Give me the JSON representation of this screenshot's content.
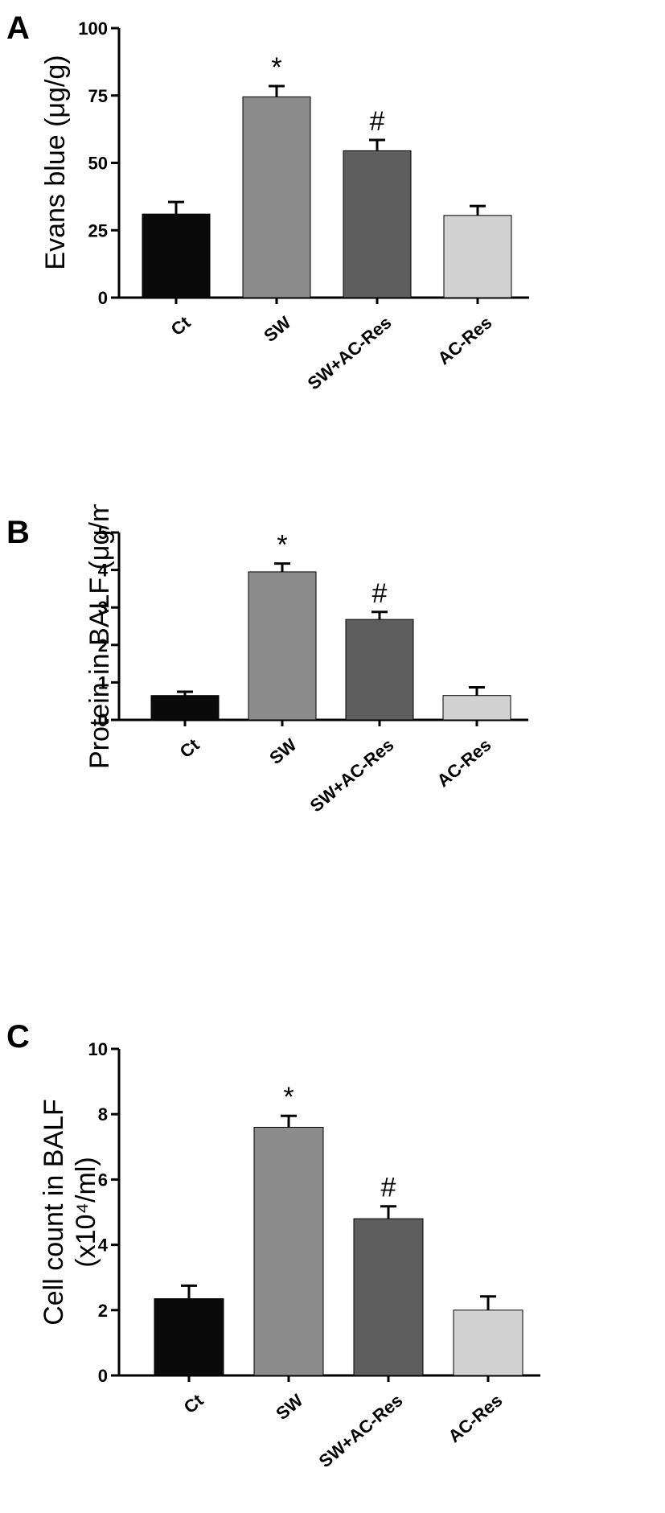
{
  "chart_data": [
    {
      "type": "bar",
      "panel": "A",
      "ylabel_lines": [
        "Evans blue (μg/g)"
      ],
      "categories": [
        "Ct",
        "SW",
        "SW+AC-Res",
        "AC-Res"
      ],
      "values": [
        31,
        74.5,
        54.5,
        30.5
      ],
      "errors": [
        4.5,
        4,
        4,
        3.5
      ],
      "annotations": [
        "",
        "*",
        "#",
        ""
      ],
      "colors": [
        "#0a0a0a",
        "#8c8c8c",
        "#5e5e5e",
        "#d2d2d2"
      ],
      "ylim": [
        0,
        100
      ],
      "yticks": [
        "0",
        "25",
        "50",
        "75",
        "100"
      ]
    },
    {
      "type": "bar",
      "panel": "B",
      "ylabel_lines": [
        "Protein in BALF  (μg/ml)"
      ],
      "categories": [
        "Ct",
        "SW",
        "SW+AC-Res",
        "AC-Res"
      ],
      "values": [
        0.65,
        3.95,
        2.68,
        0.65
      ],
      "errors": [
        0.1,
        0.22,
        0.2,
        0.22
      ],
      "annotations": [
        "",
        "*",
        "#",
        ""
      ],
      "colors": [
        "#0a0a0a",
        "#8c8c8c",
        "#5e5e5e",
        "#d2d2d2"
      ],
      "ylim": [
        0,
        5
      ],
      "yticks": [
        "0",
        "1",
        "2",
        "3",
        "4",
        "5"
      ]
    },
    {
      "type": "bar",
      "panel": "C",
      "ylabel_lines": [
        "Cell count in BALF",
        "(x10⁴/ml)"
      ],
      "categories": [
        "Ct",
        "SW",
        "SW+AC-Res",
        "AC-Res"
      ],
      "values": [
        2.35,
        7.6,
        4.8,
        2.0
      ],
      "errors": [
        0.4,
        0.35,
        0.38,
        0.42
      ],
      "annotations": [
        "",
        "*",
        "#",
        ""
      ],
      "colors": [
        "#0a0a0a",
        "#8c8c8c",
        "#5e5e5e",
        "#d2d2d2"
      ],
      "ylim": [
        0,
        10
      ],
      "yticks": [
        "0",
        "2",
        "4",
        "6",
        "8",
        "10"
      ]
    }
  ]
}
